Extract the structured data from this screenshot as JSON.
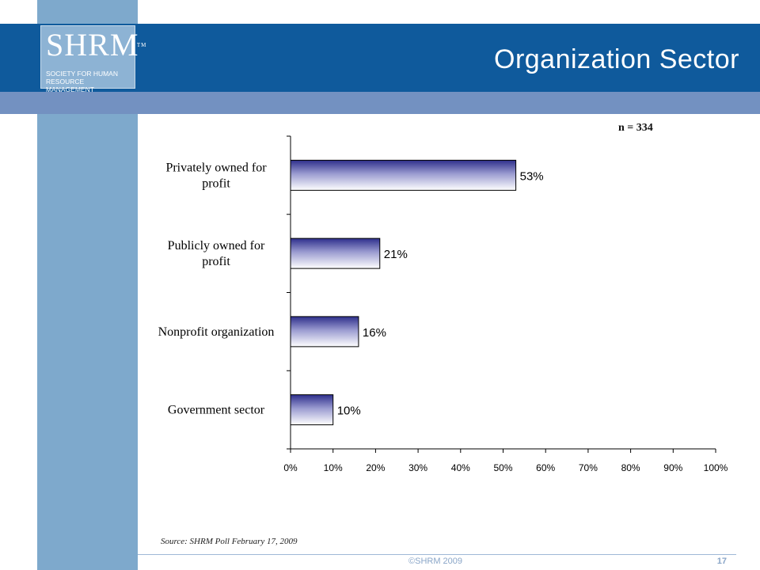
{
  "header": {
    "logo_mark": "SHRM",
    "logo_tm": "TM",
    "logo_subtitle": "Society for Human Resource Management",
    "title": "Organization Sector"
  },
  "sample_size": "n = 334",
  "chart_data": {
    "type": "bar",
    "orientation": "horizontal",
    "categories": [
      [
        "Privately owned for",
        "profit"
      ],
      [
        "Publicly owned for",
        "profit"
      ],
      [
        "Nonprofit organization"
      ],
      [
        "Government sector"
      ]
    ],
    "values": [
      53,
      21,
      16,
      10
    ],
    "value_labels": [
      "53%",
      "21%",
      "16%",
      "10%"
    ],
    "xlim": [
      0,
      100
    ],
    "x_ticks": [
      "0%",
      "10%",
      "20%",
      "30%",
      "40%",
      "50%",
      "60%",
      "70%",
      "80%",
      "90%",
      "100%"
    ],
    "grid": false,
    "legend": "none",
    "bar_gradient": [
      "#2e2f8c",
      "#ffffff"
    ]
  },
  "footer": {
    "source": "Source: SHRM Poll February 17, 2009",
    "copyright": "©SHRM 2009",
    "page_number": "17"
  }
}
